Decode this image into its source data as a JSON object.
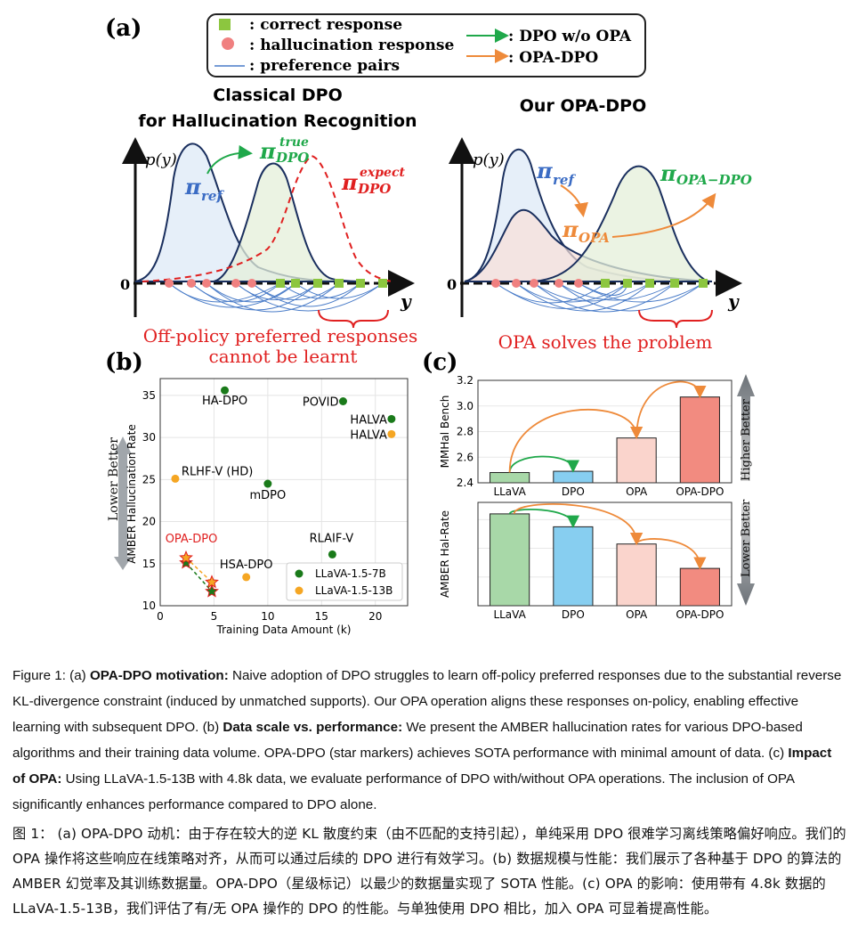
{
  "panel_a": {
    "label": "(a)",
    "legend": {
      "correct": ": correct response",
      "hallucination": ": hallucination response",
      "pairs": ": preference pairs",
      "dpo_wo_opa": ": DPO w/o OPA",
      "opa_dpo": ": OPA-DPO"
    },
    "left": {
      "title_line1": "Classical DPO",
      "title_line2": "for Hallucination Recognition",
      "py": "p(y)",
      "zero": "0",
      "y": "y",
      "pi": "π",
      "ref_sub": "ref",
      "dpo_sub": "DPO",
      "true_sup": "true",
      "expect_sup": "expect",
      "note_line1": "Off-policy preferred responses",
      "note_line2": "cannot be learnt"
    },
    "right": {
      "title": "Our OPA-DPO",
      "py": "p(y)",
      "zero": "0",
      "y": "y",
      "pi": "π",
      "ref_sub": "ref",
      "opa_sub": "OPA",
      "opadpo_sub": "OPA−DPO",
      "note": "OPA solves the problem"
    }
  },
  "panel_b": {
    "label": "(b)",
    "lower_better": "Lower Better",
    "point_labels": {
      "ha_dpo": "HA-DPO",
      "povid": "POVID",
      "halva7": "HALVA",
      "halva13": "HALVA",
      "rlhfv": "RLHF-V (HD)",
      "mdpo": "mDPO",
      "rlaifv": "RLAIF-V",
      "hsadpo": "HSA-DPO",
      "opadpo": "OPA-DPO"
    }
  },
  "panel_c": {
    "label": "(c)",
    "higher_better": "Higher Better",
    "lower_better": "Lower Better"
  },
  "chart_data": [
    {
      "type": "scatter",
      "xlabel": "Training Data Amount (k)",
      "ylabel": "AMBER Hallucination Rate",
      "xlim": [
        0,
        23
      ],
      "ylim": [
        10,
        37
      ],
      "xticks": [
        0,
        5,
        10,
        15,
        20
      ],
      "yticks": [
        10,
        15,
        20,
        25,
        30,
        35
      ],
      "grid": true,
      "legend_position": "bottom-right",
      "series": [
        {
          "name": "LLaVA-1.5-7B",
          "color": "#1a7a1a",
          "points": [
            {
              "label": "HA-DPO",
              "x": 6,
              "y": 35.6
            },
            {
              "label": "POVID",
              "x": 17,
              "y": 34.3
            },
            {
              "label": "HALVA",
              "x": 21.5,
              "y": 32.2
            },
            {
              "label": "mDPO",
              "x": 10,
              "y": 24.5
            },
            {
              "label": "RLAIF-V",
              "x": 16,
              "y": 16.1
            }
          ]
        },
        {
          "name": "LLaVA-1.5-13B",
          "color": "#f5a623",
          "points": [
            {
              "label": "HALVA",
              "x": 21.5,
              "y": 30.4
            },
            {
              "label": "RLHF-V (HD)",
              "x": 1.4,
              "y": 25.1
            },
            {
              "label": "HSA-DPO",
              "x": 8,
              "y": 13.4
            }
          ]
        }
      ],
      "stars": [
        {
          "model": "LLaVA-1.5-7B",
          "from": {
            "x": 2.4,
            "y": 15.1
          },
          "to": {
            "x": 4.8,
            "y": 11.7
          }
        },
        {
          "model": "LLaVA-1.5-13B",
          "from": {
            "x": 2.4,
            "y": 15.7
          },
          "to": {
            "x": 4.8,
            "y": 12.8
          }
        }
      ]
    },
    {
      "type": "bar",
      "ylabel": "MMHal Bench",
      "categories": [
        "LLaVA",
        "DPO",
        "OPA",
        "OPA-DPO"
      ],
      "values": [
        2.48,
        2.49,
        2.75,
        3.07
      ],
      "ylim": [
        2.4,
        3.2
      ],
      "yticks": [
        2.4,
        2.6,
        2.8,
        3.0,
        3.2
      ],
      "colors": [
        "#a8d8a8",
        "#87cef0",
        "#fad4cc",
        "#f28b80"
      ]
    },
    {
      "type": "bar",
      "ylabel": "AMBER Hal-Rate",
      "categories": [
        "LLaVA",
        "DPO",
        "OPA",
        "OPA-DPO"
      ],
      "values": [
        32,
        27.5,
        21.5,
        13
      ],
      "ylim": [
        0,
        36
      ],
      "colors": [
        "#a8d8a8",
        "#87cef0",
        "#fad4cc",
        "#f28b80"
      ]
    }
  ],
  "caption_en": {
    "fig": "Figure 1: (a) ",
    "b1": "OPA-DPO motivation:",
    "t1": " Naive adoption of DPO struggles to learn off-policy preferred responses due to the substantial reverse KL-divergence constraint (induced by unmatched supports). Our OPA operation aligns these responses on-policy, enabling effective learning with subsequent DPO. (b) ",
    "b2": "Data scale vs. performance:",
    "t2": " We present the AMBER hallucination rates for various DPO-based algorithms and their training data volume. OPA-DPO (star markers) achieves SOTA performance with minimal amount of data. (c) ",
    "b3": "Impact of OPA:",
    "t3": " Using LLaVA-1.5-13B with 4.8k data, we evaluate performance of DPO with/without OPA operations. The inclusion of OPA significantly enhances performance compared to DPO alone."
  },
  "caption_zh": "图 1： (a) OPA-DPO 动机：由于存在较大的逆 KL 散度约束（由不匹配的支持引起），单纯采用 DPO 很难学习离线策略偏好响应。我们的 OPA 操作将这些响应在线策略对齐，从而可以通过后续的 DPO 进行有效学习。(b) 数据规模与性能：我们展示了各种基于 DPO 的算法的 AMBER 幻觉率及其训练数据量。OPA-DPO（星级标记）以最少的数据量实现了 SOTA 性能。(c) OPA 的影响：使用带有 4.8k 数据的 LLaVA-1.5-13B，我们评估了有/无 OPA 操作的 DPO 的性能。与单独使用 DPO 相比，加入 OPA 可显着提高性能。"
}
